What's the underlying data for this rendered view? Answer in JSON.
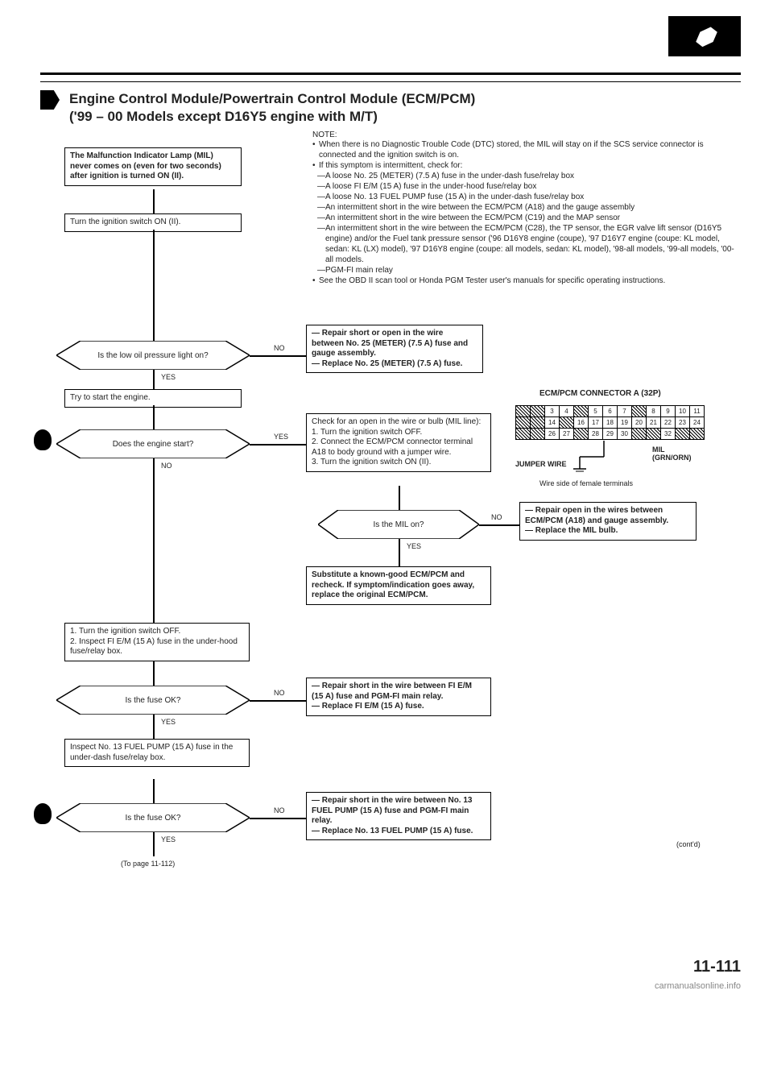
{
  "header": {
    "title_line1": "Engine Control Module/Powertrain Control Module (ECM/PCM)",
    "title_line2": "('99 – 00 Models except D16Y5 engine with M/T)"
  },
  "note": {
    "label": "NOTE:",
    "b1": "When there is no Diagnostic Trouble Code (DTC) stored, the MIL will stay on if the SCS service connector is connected and the ignition switch is on.",
    "b2": "If this symptom is intermittent, check for:",
    "d1": "A loose No. 25 (METER) (7.5 A) fuse in the under-dash fuse/relay box",
    "d2": "A loose FI E/M (15 A) fuse in the under-hood fuse/relay box",
    "d3": "A loose No. 13 FUEL PUMP fuse (15 A) in the under-dash fuse/relay box",
    "d4": "An intermittent short in the wire between the ECM/PCM (A18) and the gauge assembly",
    "d5": "An intermittent short in the wire between the ECM/PCM (C19) and the MAP sensor",
    "d6": "An intermittent short in the wire between the ECM/PCM (C28), the TP sensor, the EGR valve lift sensor (D16Y5 engine) and/or the Fuel tank pressure sensor ('96 D16Y8 engine (coupe), '97 D16Y7 engine (coupe: KL model, sedan: KL (LX) model), '97 D16Y8 engine (coupe: all models, sedan: KL model), '98-all models, '99-all models, '00-all models.",
    "d7": "PGM-FI main relay",
    "b3": "See the OBD II scan tool or Honda PGM Tester user's manuals for specific operating instructions."
  },
  "flow": {
    "start": "The Malfunction Indicator Lamp (MIL) never comes on (even for two seconds) after ignition is turned ON (II).",
    "step2": "Turn the ignition switch ON (II).",
    "dec1": "Is the low oil pressure light on?",
    "act1": "— Repair short or open in the wire between No. 25 (METER) (7.5 A) fuse and gauge assembly.\n— Replace No. 25 (METER) (7.5 A) fuse.",
    "step3": "Try to start the engine.",
    "dec2": "Does the engine start?",
    "act2": "Check for an open in the wire or bulb (MIL line):\n1. Turn the ignition switch OFF.\n2. Connect the ECM/PCM connector terminal A18 to body ground with a jumper wire.\n3. Turn the ignition switch ON (II).",
    "dec3": "Is the MIL on?",
    "act3": "— Repair open in the wires between ECM/PCM (A18) and gauge assembly.\n— Replace the MIL bulb.",
    "act4": "Substitute a known-good ECM/PCM and recheck. If symptom/indication goes away, replace the original ECM/PCM.",
    "step4": "1. Turn the ignition switch OFF.\n2. Inspect FI E/M (15 A) fuse in the under-hood fuse/relay box.",
    "dec4": "Is the fuse OK?",
    "act5": "— Repair short in the wire between FI E/M (15 A) fuse and PGM-FI main relay.\n— Replace FI E/M (15 A) fuse.",
    "step5": "Inspect No. 13 FUEL PUMP (15 A) fuse in the under-dash fuse/relay box.",
    "dec5": "Is the fuse OK?",
    "act6": "— Repair short in the wire between No. 13 FUEL PUMP (15 A) fuse and PGM-FI main relay.\n— Replace No. 13 FUEL PUMP (15 A) fuse.",
    "to_page": "(To page 11-112)",
    "yes": "YES",
    "no": "NO",
    "contd": "(cont'd)"
  },
  "connector": {
    "title": "ECM/PCM CONNECTOR A (32P)",
    "mil": "MIL (GRN/ORN)",
    "jumper": "JUMPER WIRE",
    "caption": "Wire side of female terminals",
    "cells": [
      [
        "",
        "",
        "3",
        "4",
        "",
        "5",
        "6",
        "7",
        "",
        "8",
        "9",
        "10",
        "11"
      ],
      [
        "",
        "",
        "14",
        "",
        "16",
        "17",
        "18",
        "19",
        "20",
        "21",
        "22",
        "23",
        "24"
      ],
      [
        "",
        "",
        "26",
        "27",
        "",
        "28",
        "29",
        "30",
        "",
        "",
        "32",
        "",
        ""
      ]
    ],
    "hatched": [
      [
        0,
        0
      ],
      [
        0,
        1
      ],
      [
        0,
        4
      ],
      [
        0,
        8
      ],
      [
        1,
        0
      ],
      [
        1,
        1
      ],
      [
        1,
        3
      ],
      [
        2,
        0
      ],
      [
        2,
        1
      ],
      [
        2,
        4
      ],
      [
        2,
        8
      ],
      [
        2,
        9
      ],
      [
        2,
        11
      ],
      [
        2,
        12
      ]
    ]
  },
  "footer": {
    "page": "11-111",
    "watermark": "carmanualsonline.info"
  }
}
